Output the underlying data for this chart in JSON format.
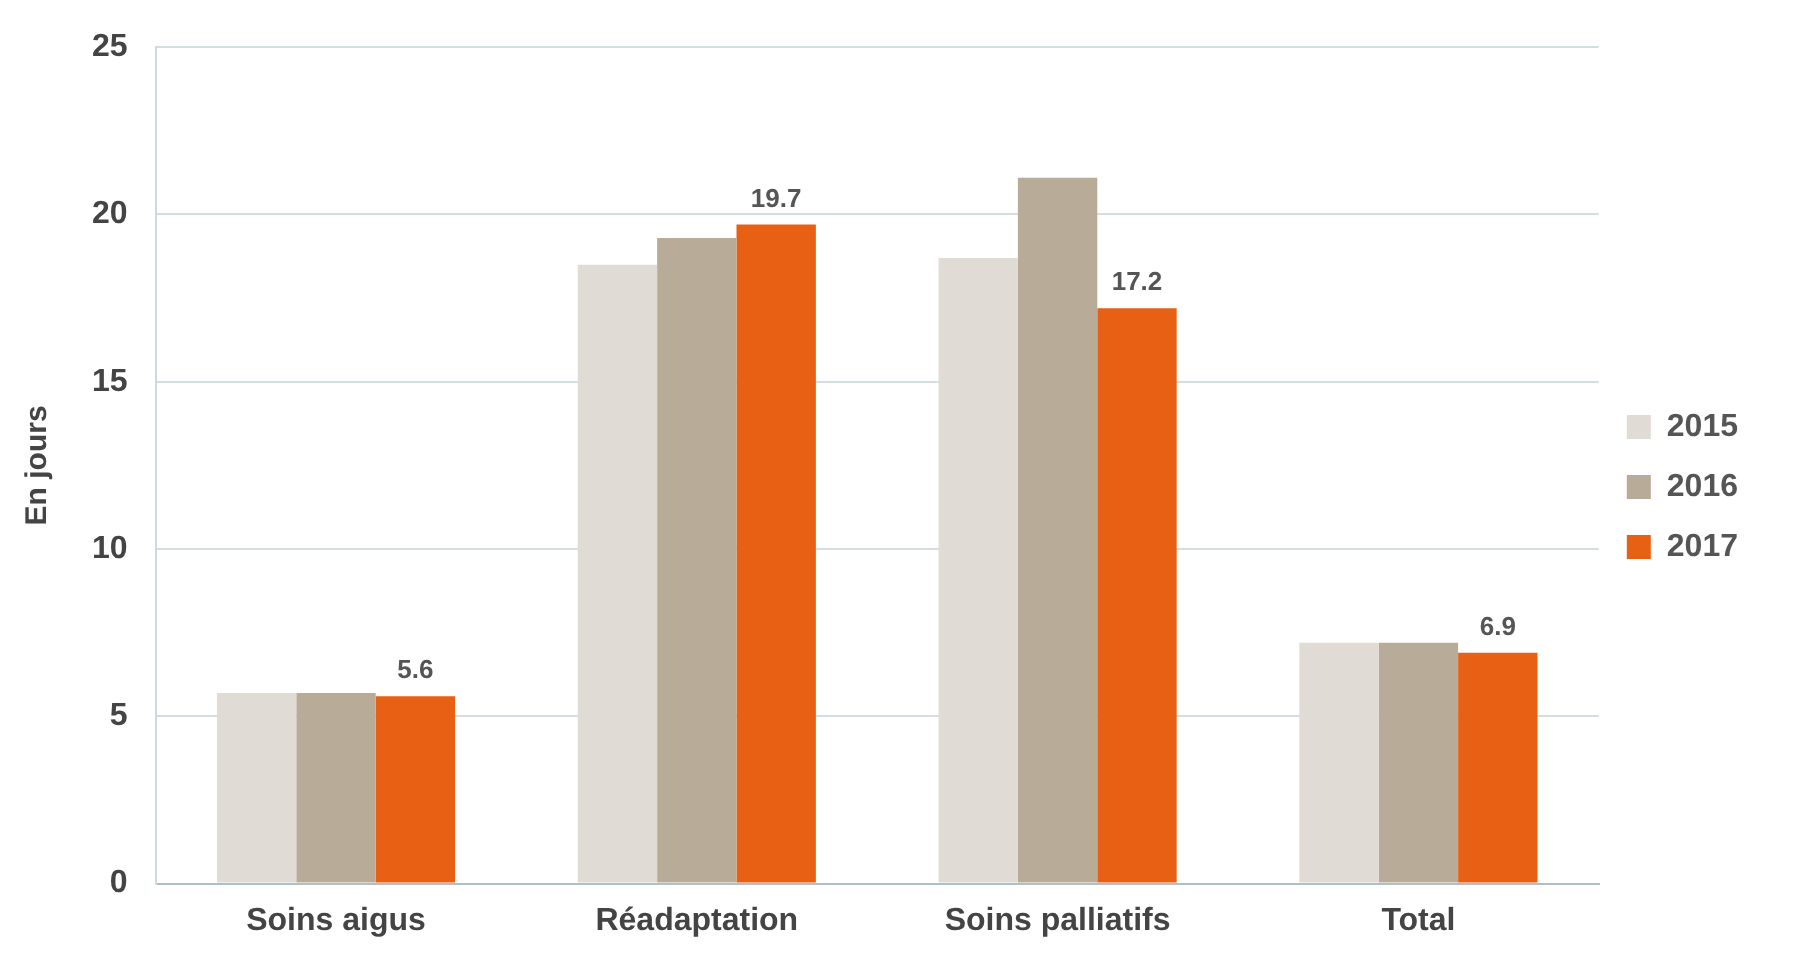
{
  "chart_data": {
    "type": "bar",
    "ylabel": "En jours",
    "categories": [
      "Soins aigus",
      "Réadaptation",
      "Soins palliatifs",
      "Total"
    ],
    "series": [
      {
        "name": "2015",
        "color": "#e0dcd5",
        "values": [
          5.7,
          18.5,
          18.7,
          7.2
        ]
      },
      {
        "name": "2016",
        "color": "#b8ac98",
        "values": [
          5.7,
          19.3,
          21.1,
          7.2
        ]
      },
      {
        "name": "2017",
        "color": "#e86014",
        "values": [
          5.6,
          19.7,
          17.2,
          6.9
        ],
        "value_labels": [
          "5.6",
          "19.7",
          "17.2",
          "6.9"
        ]
      }
    ],
    "ylim": [
      0,
      25
    ],
    "yticks": [
      0,
      5,
      10,
      15,
      20,
      25
    ],
    "grid": "y",
    "legend": "right"
  }
}
